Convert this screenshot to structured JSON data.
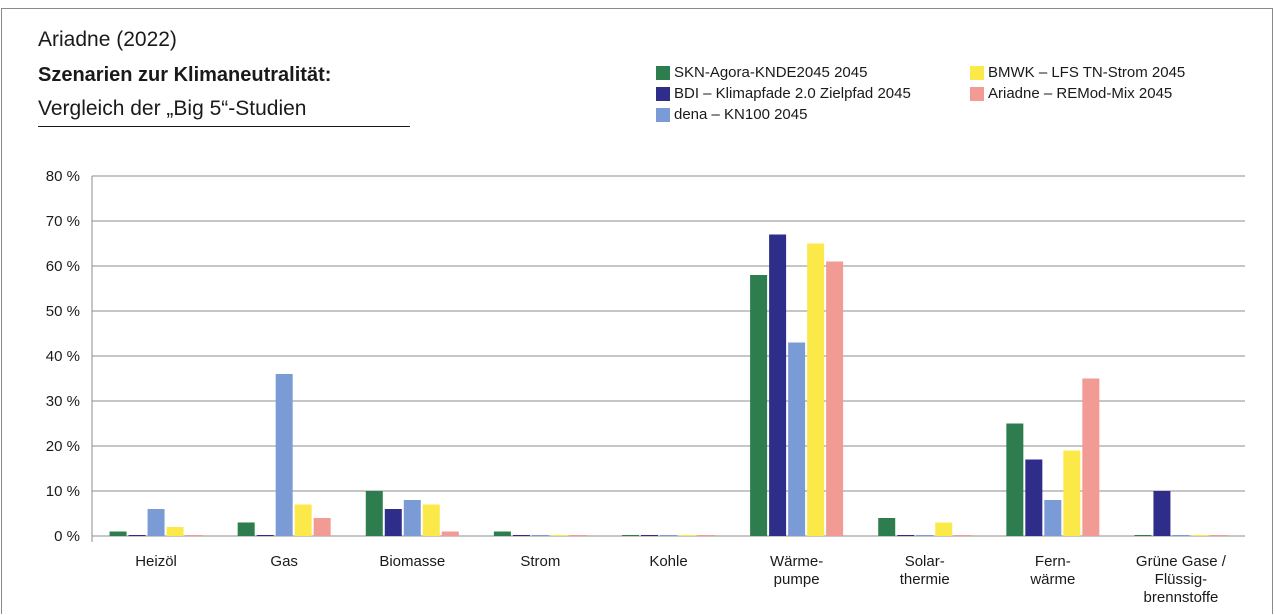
{
  "header": {
    "line1": "Ariadne (2022)",
    "line2": "Szenarien zur Klimaneutralität:",
    "line3": "Vergleich der „Big 5“-Studien"
  },
  "chart_data": {
    "type": "bar",
    "title": "Szenarien zur Klimaneutralität:",
    "subtitle": "Vergleich der „Big 5“-Studien",
    "xlabel": "",
    "ylabel": "",
    "ylim": [
      0,
      80
    ],
    "yticks": [
      "0 %",
      "10 %",
      "20 %",
      "30 %",
      "40 %",
      "50 %",
      "60 %",
      "70 %",
      "80 %"
    ],
    "ytick_values": [
      0,
      10,
      20,
      30,
      40,
      50,
      60,
      70,
      80
    ],
    "grid": true,
    "legend_position": "top-right",
    "categories": [
      [
        "Heizöl"
      ],
      [
        "Gas"
      ],
      [
        "Biomasse"
      ],
      [
        "Strom"
      ],
      [
        "Kohle"
      ],
      [
        "Wärme-",
        "pumpe"
      ],
      [
        "Solar-",
        "thermie"
      ],
      [
        "Fern-",
        "wärme"
      ],
      [
        "Grüne Gase /",
        "Flüssig-",
        "brennstoffe"
      ]
    ],
    "series": [
      {
        "name": "SKN-Agora-KNDE2045 2045",
        "color": "#2e7d4f",
        "values": [
          1,
          3,
          10,
          1,
          0,
          58,
          4,
          25,
          0
        ]
      },
      {
        "name": "BDI – Klimapfade 2.0 Zielpfad 2045",
        "color": "#2e2e8a",
        "values": [
          0,
          0,
          6,
          0,
          0,
          67,
          0,
          17,
          10
        ]
      },
      {
        "name": "dena – KN100 2045",
        "color": "#7b9bd6",
        "values": [
          6,
          36,
          8,
          0,
          0,
          43,
          0,
          8,
          0
        ]
      },
      {
        "name": "BMWK – LFS TN-Strom 2045",
        "color": "#fbe94a",
        "values": [
          2,
          7,
          7,
          0,
          0,
          65,
          3,
          19,
          0
        ]
      },
      {
        "name": "Ariadne – REMod-Mix 2045",
        "color": "#f29a94",
        "values": [
          0,
          4,
          1,
          0,
          0,
          61,
          0,
          35,
          0
        ]
      }
    ]
  }
}
